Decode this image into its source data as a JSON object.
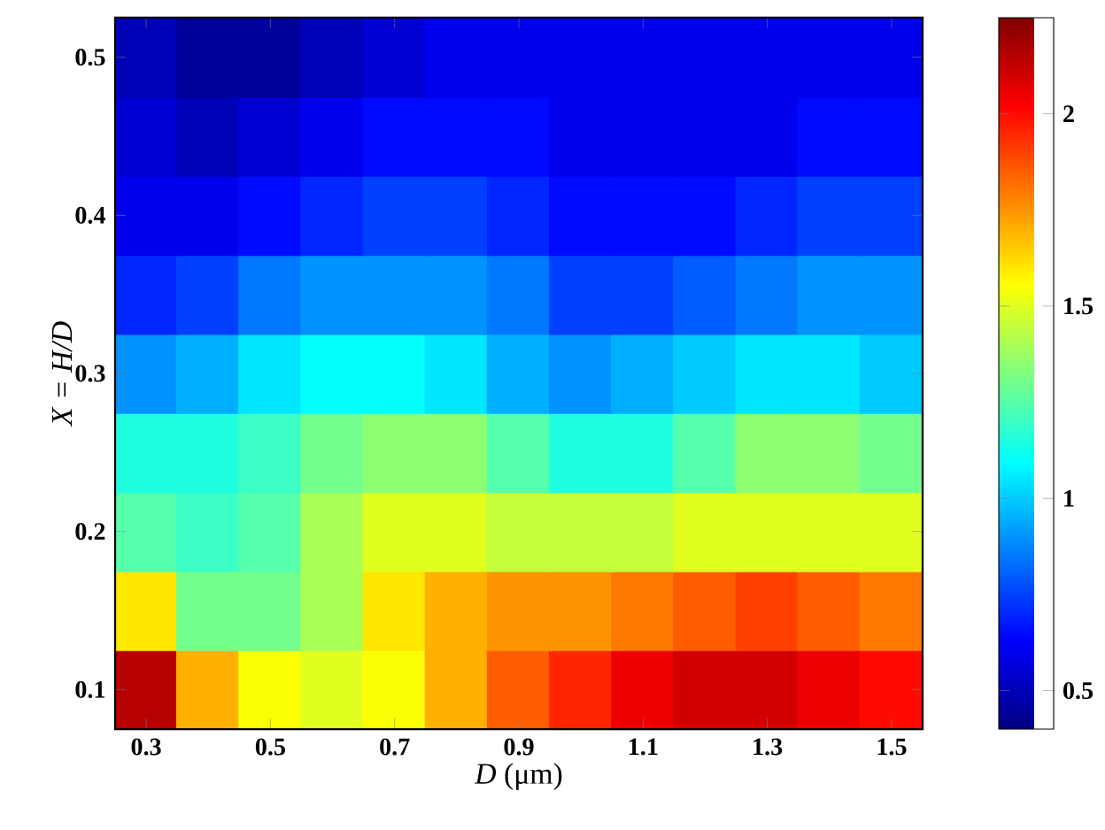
{
  "chart_data": {
    "type": "heatmap",
    "xlabel": "*D* (μm)",
    "ylabel": "X = H/D",
    "categories": [
      "0.3",
      null,
      "0.5",
      null,
      "0.7",
      null,
      "0.9",
      null,
      "1.1",
      null,
      "1.3",
      null,
      "1.5"
    ],
    "y_categories": [
      "0.5",
      null,
      "0.4",
      null,
      "0.3",
      null,
      "0.2",
      null,
      "0.1"
    ],
    "clim": [
      0.4,
      2.25
    ],
    "cticks": [
      0.5,
      1,
      1.5,
      2
    ],
    "cells": [
      [
        0.5,
        0.45,
        0.45,
        0.5,
        0.55,
        0.6,
        0.6,
        0.6,
        0.6,
        0.6,
        0.6,
        0.6,
        0.6
      ],
      [
        0.55,
        0.5,
        0.55,
        0.6,
        0.65,
        0.65,
        0.65,
        0.6,
        0.6,
        0.6,
        0.6,
        0.65,
        0.65
      ],
      [
        0.6,
        0.6,
        0.65,
        0.7,
        0.75,
        0.75,
        0.7,
        0.65,
        0.65,
        0.65,
        0.7,
        0.75,
        0.75
      ],
      [
        0.7,
        0.75,
        0.85,
        0.9,
        0.9,
        0.9,
        0.85,
        0.75,
        0.75,
        0.8,
        0.85,
        0.9,
        0.9
      ],
      [
        0.9,
        0.95,
        1.05,
        1.1,
        1.1,
        1.05,
        0.95,
        0.9,
        0.95,
        1.0,
        1.05,
        1.05,
        1.0
      ],
      [
        1.15,
        1.15,
        1.2,
        1.3,
        1.35,
        1.35,
        1.25,
        1.15,
        1.15,
        1.25,
        1.35,
        1.35,
        1.3
      ],
      [
        1.25,
        1.2,
        1.25,
        1.4,
        1.5,
        1.5,
        1.45,
        1.45,
        1.45,
        1.5,
        1.5,
        1.5,
        1.5
      ],
      [
        1.6,
        1.3,
        1.3,
        1.4,
        1.6,
        1.7,
        1.75,
        1.75,
        1.8,
        1.85,
        1.9,
        1.85,
        1.8
      ],
      [
        2.15,
        1.7,
        1.55,
        1.5,
        1.55,
        1.7,
        1.85,
        1.95,
        2.05,
        2.1,
        2.1,
        2.05,
        2.0
      ]
    ]
  }
}
